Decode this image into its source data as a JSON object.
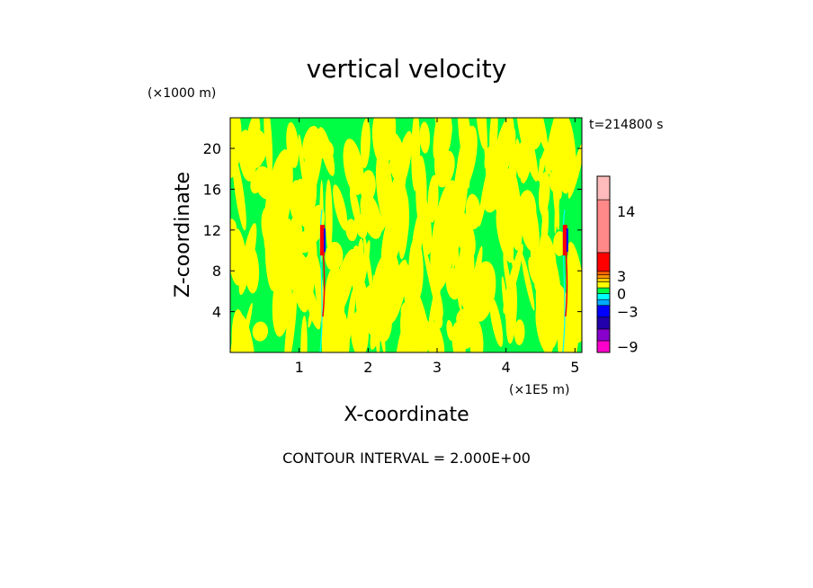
{
  "chart_data": {
    "type": "heatmap",
    "title": "vertical velocity",
    "xlabel": "X-coordinate",
    "ylabel": "Z-coordinate",
    "x_unit": "(×1E5 m)",
    "y_unit": "(×1000 m)",
    "time_label": "t=214800 s",
    "footer": "CONTOUR INTERVAL = 2.000E+00",
    "xlim": [
      0,
      5.1
    ],
    "ylim": [
      0,
      23
    ],
    "x_ticks": [
      {
        "value": 1,
        "label": "1"
      },
      {
        "value": 2,
        "label": "2"
      },
      {
        "value": 3,
        "label": "3"
      },
      {
        "value": 4,
        "label": "4"
      },
      {
        "value": 5,
        "label": "5"
      }
    ],
    "y_ticks": [
      {
        "value": 4,
        "label": "4"
      },
      {
        "value": 8,
        "label": "8"
      },
      {
        "value": 12,
        "label": "12"
      },
      {
        "value": 16,
        "label": "16"
      },
      {
        "value": 20,
        "label": "20"
      }
    ],
    "contour_interval": 2.0,
    "background_level_color": "#00ff44",
    "dominant_level_color": "#ffff00",
    "colorbar": {
      "vmin": -10,
      "vmax": 20,
      "levels": [
        {
          "from": -10,
          "to": -8,
          "color": "#ff00cc"
        },
        {
          "from": -8,
          "to": -6,
          "color": "#8800cc"
        },
        {
          "from": -6,
          "to": -4,
          "color": "#2200aa"
        },
        {
          "from": -4,
          "to": -2,
          "color": "#0000ff"
        },
        {
          "from": -2,
          "to": -1,
          "color": "#00aaff"
        },
        {
          "from": -1,
          "to": 0,
          "color": "#00ffff"
        },
        {
          "from": 0,
          "to": 1,
          "color": "#00ff44"
        },
        {
          "from": 1,
          "to": 2,
          "color": "#ffff00"
        },
        {
          "from": 2,
          "to": 2.6,
          "color": "#ffcc00"
        },
        {
          "from": 2.6,
          "to": 3.2,
          "color": "#ff9900"
        },
        {
          "from": 3.2,
          "to": 3.8,
          "color": "#ff6600"
        },
        {
          "from": 3.8,
          "to": 7,
          "color": "#ff0000"
        },
        {
          "from": 7,
          "to": 16,
          "color": "#ff8888"
        },
        {
          "from": 16,
          "to": 20,
          "color": "#ffbbbb"
        }
      ],
      "tick_labels": [
        {
          "value": 14,
          "label": "14"
        },
        {
          "value": 3,
          "label": "3"
        },
        {
          "value": 0,
          "label": "0"
        },
        {
          "value": -3,
          "label": "−3"
        },
        {
          "value": -9,
          "label": "−9"
        }
      ]
    },
    "updraft_columns": [
      {
        "x": 1.33,
        "z_from": 0,
        "z_to": 14,
        "peak_z_from": 9.5,
        "peak_z_to": 12.5,
        "color": "#ff0000",
        "pair_color": "#0000ff"
      },
      {
        "x": 4.85,
        "z_from": 0,
        "z_to": 14,
        "peak_z_from": 9.5,
        "peak_z_to": 12.5,
        "color": "#ff0000",
        "pair_color": "#0000ff"
      }
    ]
  }
}
